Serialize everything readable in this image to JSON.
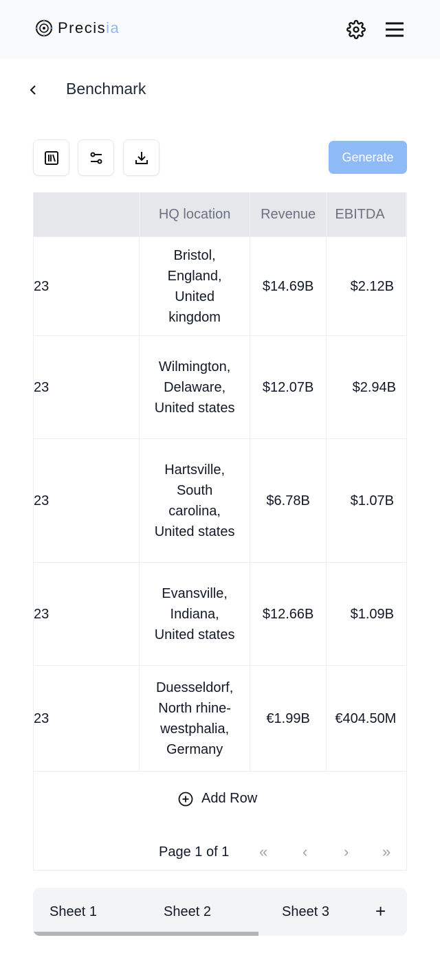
{
  "header": {
    "logo_main": "Precis",
    "logo_accent": "ia",
    "settings_icon": "gear-icon",
    "menu_icon": "hamburger-icon"
  },
  "page": {
    "title": "Benchmark",
    "back_icon": "chevron-left-icon"
  },
  "toolbar": {
    "columns_icon": "columns-icon",
    "filter_icon": "sliders-icon",
    "download_icon": "download-icon",
    "generate_label": "Generate"
  },
  "colors": {
    "accent": "#8fbaf8",
    "header_bg": "#e5e7eb"
  },
  "table": {
    "headers": [
      "",
      "HQ location",
      "Revenue",
      "EBITDA"
    ],
    "rows": [
      {
        "c0": "23",
        "hq": "Bristol,\nEngland,\nUnited\nkingdom",
        "revenue": "$14.69B",
        "ebitda": "$2.12B"
      },
      {
        "c0": "23",
        "hq": "Wilmington,\nDelaware,\nUnited states",
        "revenue": "$12.07B",
        "ebitda": "$2.94B"
      },
      {
        "c0": "23",
        "hq": "Hartsville,\nSouth\ncarolina,\nUnited states",
        "revenue": "$6.78B",
        "ebitda": "$1.07B"
      },
      {
        "c0": "23",
        "hq": "Evansville,\nIndiana,\nUnited states",
        "revenue": "$12.66B",
        "ebitda": "$1.09B"
      },
      {
        "c0": "23",
        "hq": "Duesseldorf,\nNorth rhine-\nwestphalia,\nGermany",
        "revenue": "€1.99B",
        "ebitda": "€404.50M"
      }
    ],
    "add_row_label": "Add Row",
    "pagination": {
      "label": "Page 1 of 1",
      "first": "«",
      "prev": "‹",
      "next": "›",
      "last": "»"
    }
  },
  "sheets": {
    "tabs": [
      "Sheet 1",
      "Sheet 2",
      "Sheet 3"
    ],
    "add": "+"
  }
}
